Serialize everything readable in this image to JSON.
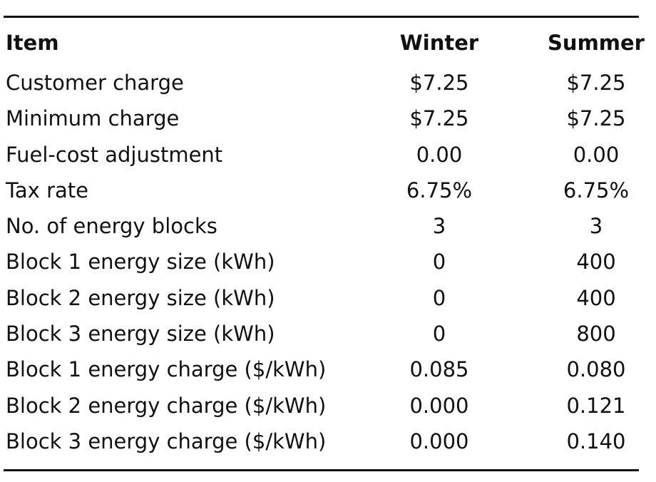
{
  "table": {
    "headers": [
      "Item",
      "Winter",
      "Summer"
    ],
    "rows": [
      [
        "Customer charge",
        "$7.25",
        "$7.25"
      ],
      [
        "Minimum charge",
        "$7.25",
        "$7.25"
      ],
      [
        "Fuel-cost adjustment",
        "0.00",
        "0.00"
      ],
      [
        "Tax rate",
        "6.75%",
        "6.75%"
      ],
      [
        "No. of energy blocks",
        "3",
        "3"
      ],
      [
        "Block 1 energy size (kWh)",
        "0",
        "400"
      ],
      [
        "Block 2 energy size (kWh)",
        "0",
        "400"
      ],
      [
        "Block 3 energy size (kWh)",
        "0",
        "800"
      ],
      [
        "Block 1 energy charge ($/kWh)",
        "0.085",
        "0.080"
      ],
      [
        "Block 2 energy charge ($/kWh)",
        "0.000",
        "0.121"
      ],
      [
        "Block 3 energy charge ($/kWh)",
        "0.000",
        "0.140"
      ]
    ]
  }
}
